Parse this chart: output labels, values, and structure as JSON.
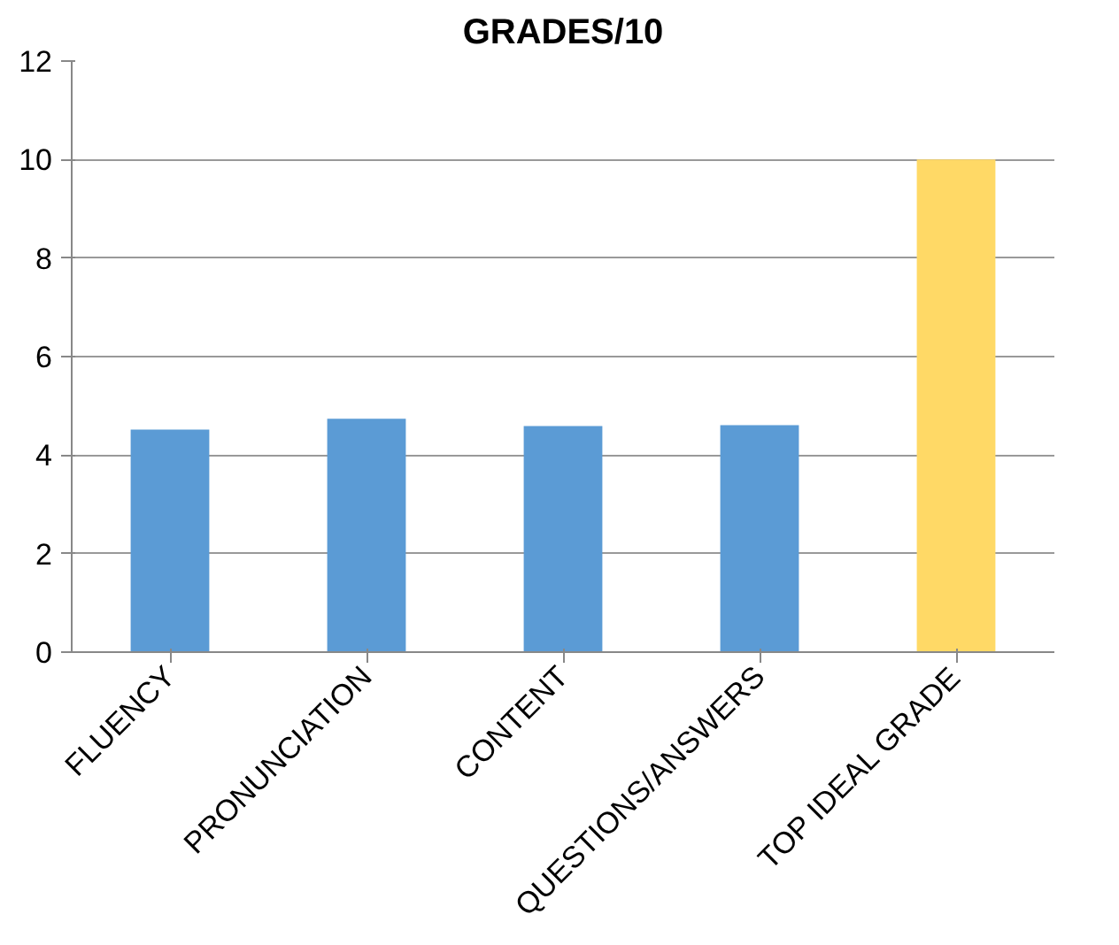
{
  "chart_data": {
    "type": "bar",
    "title": "GRADES/10",
    "categories": [
      "FLUENCY",
      "PRONUNCIATION",
      "CONTENT",
      "QUESTIONS/ANSWERS",
      "TOP IDEAL GRADE"
    ],
    "values": [
      4.52,
      4.74,
      4.59,
      4.61,
      10
    ],
    "colors": [
      "#5b9bd5",
      "#5b9bd5",
      "#5b9bd5",
      "#5b9bd5",
      "#ffd966"
    ],
    "ylim": [
      0,
      12
    ],
    "yticks": [
      0,
      2,
      4,
      6,
      8,
      10,
      12
    ],
    "grid": "y"
  }
}
